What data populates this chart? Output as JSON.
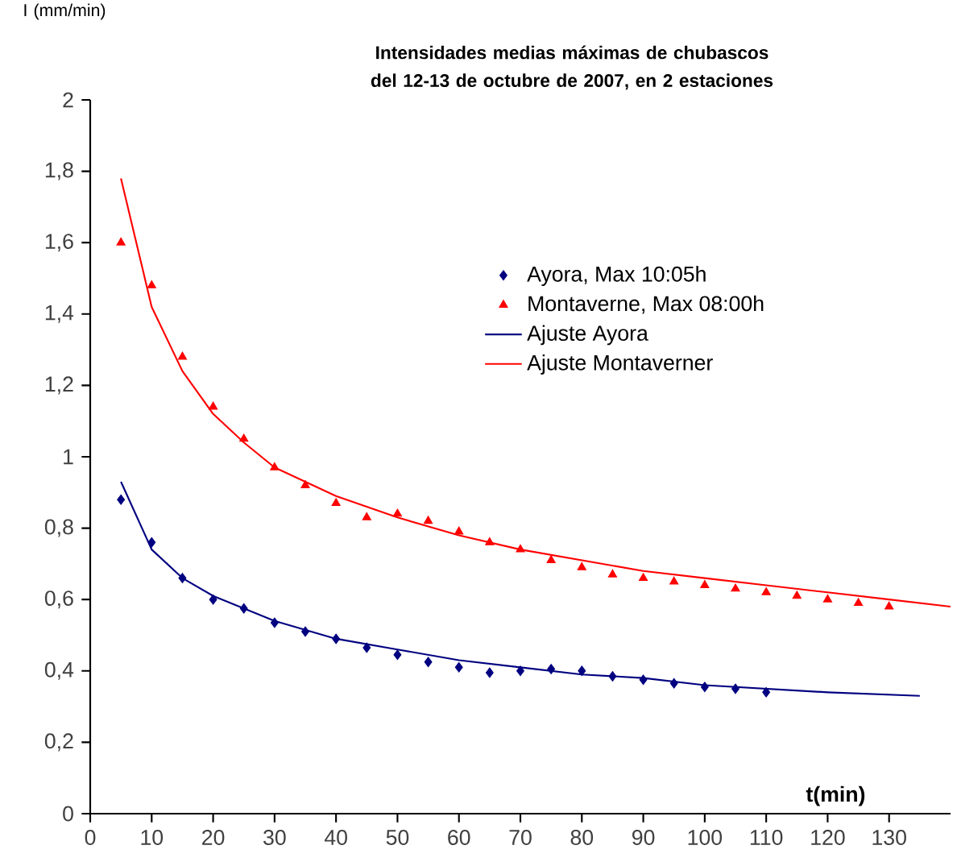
{
  "chart_data": {
    "type": "scatter",
    "title": "Intensidades medias máximas de chubascos del 12-13 de octubre de 2007, en 2 estaciones",
    "xlabel": "t(min)",
    "ylabel": "I (mm/min)",
    "xlim": [
      0,
      140
    ],
    "xticks": [
      0,
      10,
      20,
      30,
      40,
      50,
      60,
      70,
      80,
      90,
      100,
      110,
      120,
      130
    ],
    "ylim": [
      0,
      2
    ],
    "yticks": [
      0,
      {
        "value": 0.2,
        "label": "0,2"
      },
      {
        "value": 0.4,
        "label": "0,4"
      },
      {
        "value": 0.6,
        "label": "0,6"
      },
      {
        "value": 0.8,
        "label": "0,8"
      },
      1,
      {
        "value": 1.2,
        "label": "1,2"
      },
      {
        "value": 1.4,
        "label": "1,4"
      },
      {
        "value": 1.6,
        "label": "1,6"
      },
      {
        "value": 1.8,
        "label": "1,8"
      },
      2
    ],
    "grid": false,
    "legend": "top right",
    "series": [
      {
        "name": "Ayora, Max 10:05h",
        "type": "scatter",
        "marker": "diamond",
        "color": "#000080",
        "x": [
          5,
          10,
          15,
          20,
          25,
          30,
          35,
          40,
          45,
          50,
          55,
          60,
          65,
          70,
          75,
          80,
          85,
          90,
          95,
          100,
          105,
          110
        ],
        "values": [
          0.88,
          0.76,
          0.66,
          0.6,
          0.575,
          0.535,
          0.51,
          0.49,
          0.465,
          0.445,
          0.425,
          0.41,
          0.395,
          0.4,
          0.405,
          0.4,
          0.385,
          0.375,
          0.365,
          0.355,
          0.35,
          0.34
        ]
      },
      {
        "name": "Montaverne, Max 08:00h",
        "type": "scatter",
        "marker": "triangle",
        "color": "#ff0000",
        "x": [
          5,
          10,
          15,
          20,
          25,
          30,
          35,
          40,
          45,
          50,
          55,
          60,
          65,
          70,
          75,
          80,
          85,
          90,
          95,
          100,
          105,
          110,
          115,
          120,
          125,
          130
        ],
        "values": [
          1.6,
          1.48,
          1.28,
          1.14,
          1.05,
          0.97,
          0.92,
          0.87,
          0.83,
          0.84,
          0.82,
          0.79,
          0.76,
          0.74,
          0.71,
          0.69,
          0.67,
          0.66,
          0.65,
          0.64,
          0.63,
          0.62,
          0.61,
          0.6,
          0.59,
          0.58
        ]
      },
      {
        "name": "Ajuste Ayora",
        "type": "line",
        "marker": "none",
        "color": "#000080",
        "x": [
          5,
          10,
          15,
          20,
          30,
          40,
          50,
          60,
          70,
          80,
          90,
          100,
          110,
          120,
          135
        ],
        "values": [
          0.93,
          0.74,
          0.66,
          0.61,
          0.54,
          0.49,
          0.46,
          0.43,
          0.41,
          0.39,
          0.38,
          0.36,
          0.35,
          0.34,
          0.33
        ]
      },
      {
        "name": "Ajuste Montaverner",
        "type": "line",
        "marker": "none",
        "color": "#ff0000",
        "x": [
          5,
          10,
          15,
          20,
          25,
          30,
          40,
          50,
          60,
          70,
          80,
          90,
          100,
          110,
          120,
          130,
          140
        ],
        "values": [
          1.78,
          1.42,
          1.24,
          1.12,
          1.04,
          0.97,
          0.89,
          0.83,
          0.78,
          0.74,
          0.71,
          0.68,
          0.66,
          0.64,
          0.62,
          0.6,
          0.58
        ]
      }
    ]
  }
}
